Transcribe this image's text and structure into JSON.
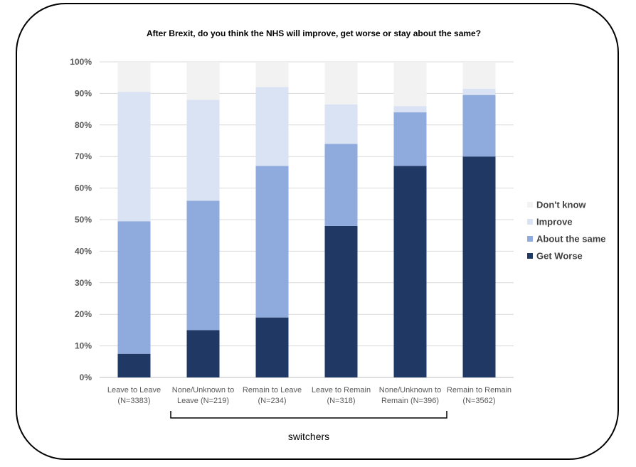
{
  "chart_data": {
    "type": "bar",
    "stacked": true,
    "title": "After Brexit, do you think the NHS will improve, get worse or stay about the same?",
    "categories": [
      [
        "Leave to Leave",
        "(N=3383)"
      ],
      [
        "None/Unknown to",
        "Leave (N=219)"
      ],
      [
        "Remain to Leave",
        "(N=234)"
      ],
      [
        "Leave to Remain",
        "(N=318)"
      ],
      [
        "None/Unknown to",
        "Remain (N=396)"
      ],
      [
        "Remain to Remain",
        "(N=3562)"
      ]
    ],
    "ylim": [
      0,
      100
    ],
    "yticks": [
      "0%",
      "10%",
      "20%",
      "30%",
      "40%",
      "50%",
      "60%",
      "70%",
      "80%",
      "90%",
      "100%"
    ],
    "grid": true,
    "legend_position": "right",
    "series": [
      {
        "name": "Get Worse",
        "color": "#203864",
        "values": [
          7.5,
          15,
          19,
          48,
          67,
          70
        ]
      },
      {
        "name": "About the same",
        "color": "#8FAADC",
        "values": [
          42,
          41,
          48,
          26,
          17,
          19.5
        ]
      },
      {
        "name": "Improve",
        "color": "#DAE3F3",
        "values": [
          41,
          32,
          25,
          12.5,
          2,
          2
        ]
      },
      {
        "name": "Don't know",
        "color": "#F2F2F2",
        "values": [
          9.5,
          12,
          8,
          13.5,
          14,
          8.5
        ]
      }
    ],
    "legend_order": [
      "Don't know",
      "Improve",
      "About the same",
      "Get Worse"
    ],
    "annotation": "switchers"
  }
}
